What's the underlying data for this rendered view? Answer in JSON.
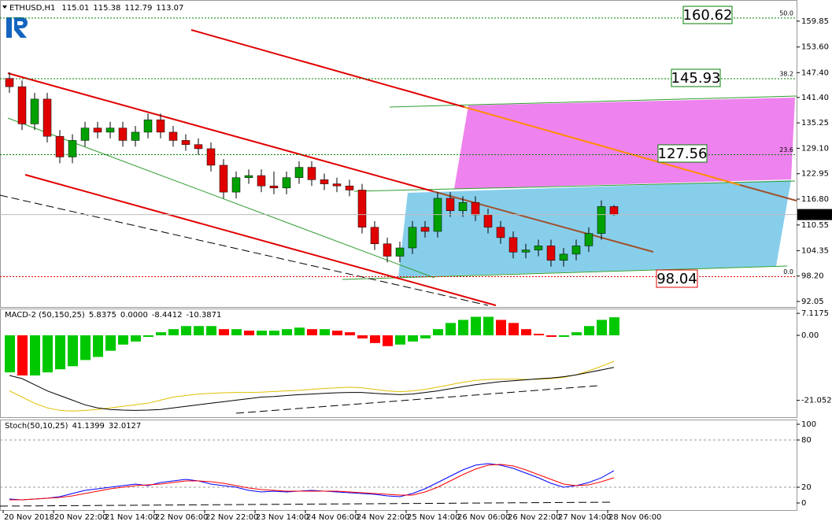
{
  "chart_data": [
    {
      "type": "candlestick",
      "title": "ETHUSD,H1",
      "categories": [
        "20 Nov 2018",
        null,
        null,
        null,
        "20 Nov 22:00",
        null,
        null,
        null,
        "21 Nov 14:00",
        null,
        null,
        null,
        "22 Nov 06:00",
        null,
        null,
        null,
        "22 Nov 22:00",
        null,
        null,
        null,
        "23 Nov 14:00",
        null,
        null,
        null,
        "24 Nov 06:00",
        null,
        null,
        null,
        "24 Nov 22:00",
        null,
        null,
        null,
        "25 Nov 14:00",
        null,
        null,
        null,
        "26 Nov 06:00",
        null,
        null,
        null,
        "26 Nov 22:00",
        null,
        null,
        null,
        "27 Nov 14:00",
        null,
        null,
        null,
        "28 Nov 06:00"
      ],
      "open": [
        146,
        144,
        135,
        141,
        132,
        127,
        131,
        134,
        133,
        134,
        131,
        133,
        136,
        133,
        131,
        130,
        129,
        125,
        118.5,
        122,
        122.5,
        120,
        119.5,
        122,
        124.5,
        121.5,
        120.5,
        120,
        119,
        110,
        106,
        103,
        105,
        110,
        109,
        117,
        114,
        116,
        113,
        110,
        107.5,
        104,
        104.5,
        105.5,
        102,
        103.5,
        105.5,
        108.5,
        115.01
      ],
      "high": [
        147.5,
        145.5,
        142.5,
        142.5,
        133.5,
        132.5,
        135.5,
        135.5,
        135.5,
        135.5,
        134.5,
        137.5,
        137.5,
        134.5,
        132.5,
        131.5,
        130.5,
        126.5,
        123.5,
        124,
        124,
        123.5,
        123.5,
        126,
        126,
        123,
        122,
        121.5,
        120.5,
        111.5,
        107.5,
        106.5,
        111.5,
        111.5,
        118.5,
        118.5,
        117.5,
        117.5,
        114.5,
        111.5,
        109,
        106,
        107,
        107,
        105,
        107,
        110,
        116.5,
        115.38
      ],
      "low": [
        142.5,
        133.5,
        133.5,
        130.5,
        125.5,
        125.5,
        129.5,
        131.5,
        131.5,
        129.5,
        129.5,
        131.5,
        131.5,
        129.5,
        128.5,
        127.5,
        123.5,
        117,
        117,
        120.5,
        118.5,
        118,
        118,
        120.5,
        120,
        119,
        118.5,
        117.5,
        108.5,
        104.5,
        101.5,
        101.5,
        103.5,
        107.5,
        107.5,
        112.5,
        112.5,
        111.5,
        108.5,
        106,
        102.5,
        102.5,
        103,
        100.5,
        100.5,
        102,
        104,
        107,
        112.79
      ],
      "close": [
        144,
        135,
        141,
        132,
        127,
        131,
        134,
        133,
        134,
        131,
        133,
        136,
        133,
        131,
        130,
        129,
        125,
        118.5,
        122,
        122.5,
        120,
        119.5,
        122,
        124.5,
        121.5,
        120.5,
        120,
        119,
        110,
        106,
        103,
        105,
        110,
        109,
        117,
        114,
        116,
        113,
        110,
        107.5,
        104,
        104.5,
        105.5,
        102,
        103.5,
        105.5,
        108.5,
        115.01,
        113.07
      ],
      "up_color": "#00a000",
      "down_color": "#e00000",
      "ylim": [
        90.72,
        164.97
      ],
      "yticks": [
        159.85,
        {
          "value": 153.6,
          "label": "153.60"
        },
        {
          "value": 147.4,
          "label": "147.40"
        },
        {
          "value": 141.4,
          "label": "141.40"
        },
        135.25,
        {
          "value": 129.1,
          "label": "129.10"
        },
        122.95,
        {
          "value": 116.8,
          "label": "116.80"
        },
        110.55,
        104.35,
        {
          "value": 98.2,
          "label": "98.20"
        },
        92.05
      ],
      "fib_levels": [
        {
          "label": "50.0",
          "value": 160.62,
          "color": "#008000"
        },
        {
          "label": "38.2",
          "value": 145.93,
          "color": "#008000"
        },
        {
          "label": "23.6",
          "value": 127.56,
          "color": "#008000"
        },
        {
          "label": "0.0",
          "value": 98.04,
          "color": "#e00000"
        }
      ]
    },
    {
      "type": "macd",
      "title": "MACD-2 (50,150,25)",
      "header_extra": {
        "value": 0,
        "label": "0.0000"
      },
      "histogram": {
        "values": [
          -12,
          -13,
          -13,
          -12,
          -11,
          -10,
          -8,
          -7,
          -5,
          -3,
          -2,
          -0.5,
          1,
          2,
          3,
          3,
          3,
          2,
          2,
          1.5,
          1.5,
          1.5,
          2,
          2.5,
          2,
          2,
          1.5,
          1,
          -1,
          -2.5,
          -3.5,
          -3,
          -2,
          -1,
          2,
          4,
          5,
          6,
          6,
          5,
          4,
          2,
          0.5,
          -0.5,
          -0.5,
          1,
          3,
          5,
          5.8375
        ],
        "up_color": "#00c800",
        "down_color": "#ff0000"
      },
      "series": [
        {
          "color": "#e0c000",
          "values": [
            -18,
            -20,
            -22,
            -23.5,
            -24.3,
            -24.5,
            -24.3,
            -24,
            -23.5,
            -23,
            -22.5,
            -22,
            -21,
            -20,
            -19.5,
            -19,
            -18.8,
            -18.6,
            -18.5,
            -18.5,
            -18.4,
            -18.2,
            -18,
            -17.8,
            -17.5,
            -17.2,
            -17,
            -16.8,
            -17,
            -17.5,
            -18,
            -18.3,
            -18,
            -17.5,
            -16.8,
            -16,
            -15.2,
            -14.6,
            -14.3,
            -14.2,
            -14.2,
            -14.3,
            -14.2,
            -14,
            -13.6,
            -12.8,
            -11.5,
            -10,
            -8.4412
          ]
        },
        {
          "color": "#000000",
          "values": [
            -13,
            -14,
            -16,
            -18,
            -19.5,
            -21,
            -22.5,
            -23.5,
            -24,
            -24.2,
            -24.3,
            -24.2,
            -24,
            -23.5,
            -23,
            -22.5,
            -22,
            -21.5,
            -21,
            -20.5,
            -20,
            -19.8,
            -19.5,
            -19.2,
            -19,
            -18.8,
            -18.6,
            -18.5,
            -18.5,
            -18.8,
            -19,
            -19.2,
            -19,
            -18.5,
            -18,
            -17.3,
            -16.6,
            -16,
            -15.5,
            -15,
            -14.7,
            -14.4,
            -14.1,
            -13.8,
            -13.4,
            -12.8,
            -12,
            -11.2,
            -10.3871
          ]
        }
      ],
      "ylim": [
        -26.5,
        8.67
      ],
      "yticks": [
        7.1175,
        {
          "value": 0,
          "label": "0.00"
        },
        -21.0521
      ]
    },
    {
      "type": "stochastic",
      "title": "Stoch(50,10,25)",
      "series": [
        {
          "color": "#0000ff",
          "values": [
            5,
            4,
            5,
            6,
            8,
            12,
            16,
            18,
            20,
            22,
            24,
            22,
            26,
            28,
            30,
            28,
            24,
            22,
            20,
            16,
            14,
            15,
            14,
            15,
            16,
            15,
            14,
            13,
            12,
            11,
            9,
            8,
            12,
            18,
            26,
            34,
            42,
            48,
            50,
            48,
            44,
            38,
            32,
            25,
            20,
            22,
            26,
            32,
            41.1399
          ]
        },
        {
          "color": "#ff0000",
          "values": [
            4,
            4,
            5,
            6,
            7,
            9,
            12,
            15,
            18,
            20,
            22,
            23,
            24,
            26,
            28,
            28,
            27,
            25,
            22,
            19,
            17,
            16,
            15,
            15,
            15,
            15,
            15,
            14,
            13,
            12,
            11,
            10,
            10,
            14,
            20,
            28,
            36,
            43,
            48,
            49,
            47,
            42,
            36,
            30,
            24,
            22,
            23,
            27,
            32.0127
          ]
        }
      ],
      "ylim": [
        -9,
        106
      ],
      "yticks": [
        100,
        80,
        20,
        0
      ],
      "level_grid": true
    }
  ]
}
